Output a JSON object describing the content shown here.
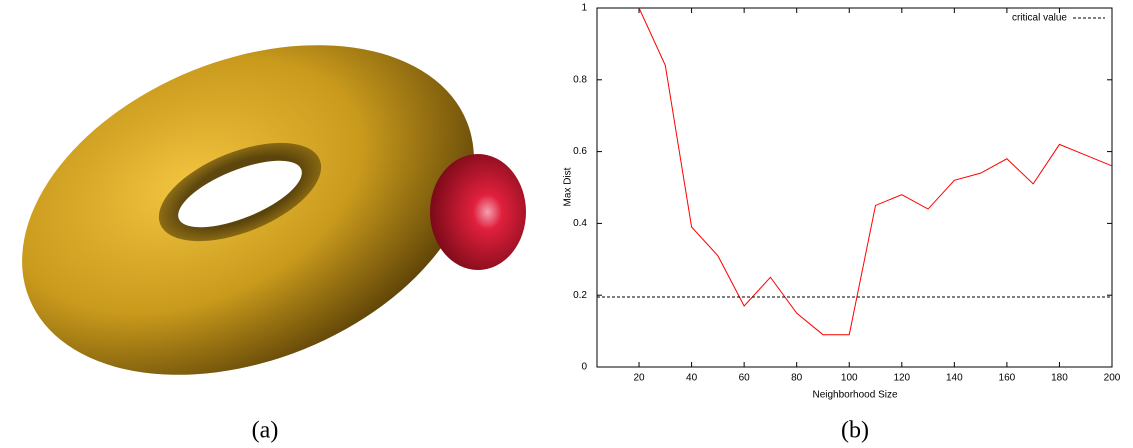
{
  "panels": {
    "a": "(a)",
    "b": "(b)"
  },
  "chart_data": {
    "type": "line",
    "x_label": "Neighborhood Size",
    "y_label": "Max Dist",
    "x": [
      20,
      30,
      40,
      50,
      60,
      70,
      80,
      90,
      100,
      110,
      120,
      130,
      140,
      150,
      160,
      170,
      180,
      190,
      200
    ],
    "series": [
      {
        "color": "#ff0000",
        "values": [
          1.0,
          0.84,
          0.39,
          0.31,
          0.17,
          0.25,
          0.15,
          0.09,
          0.09,
          0.45,
          0.48,
          0.44,
          0.52,
          0.54,
          0.58,
          0.51,
          0.62,
          0.59,
          0.56
        ]
      }
    ],
    "hlines": [
      {
        "name": "critical value",
        "y": 0.195,
        "color": "#000000",
        "dashed": true
      }
    ],
    "xlim": [
      4,
      200
    ],
    "xticks": [
      20,
      40,
      60,
      80,
      100,
      120,
      140,
      160,
      180,
      200
    ],
    "ylim": [
      0,
      1
    ],
    "yticks": [
      0,
      0.2,
      0.4,
      0.6,
      0.8,
      1
    ],
    "legend": "top-right"
  }
}
